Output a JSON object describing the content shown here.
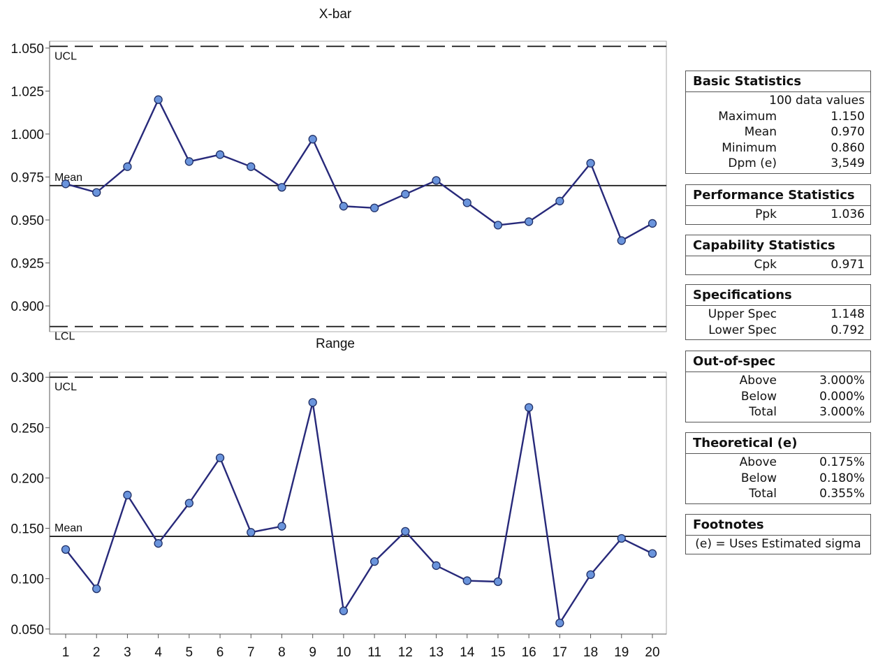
{
  "chart_data": [
    {
      "type": "line",
      "title": "X-bar",
      "x": [
        1,
        2,
        3,
        4,
        5,
        6,
        7,
        8,
        9,
        10,
        11,
        12,
        13,
        14,
        15,
        16,
        17,
        18,
        19,
        20
      ],
      "values": [
        0.971,
        0.966,
        0.981,
        1.02,
        0.984,
        0.988,
        0.981,
        0.969,
        0.997,
        0.958,
        0.957,
        0.965,
        0.973,
        0.96,
        0.947,
        0.949,
        0.961,
        0.983,
        0.938,
        0.948
      ],
      "ylim": [
        0.885,
        1.054
      ],
      "yticks": [
        "1.050",
        "1.025",
        "1.000",
        "0.975",
        "0.950",
        "0.925",
        "0.900"
      ],
      "reference_lines": [
        {
          "label": "UCL",
          "value": 1.051,
          "style": "dashed"
        },
        {
          "label": "Mean",
          "value": 0.97,
          "style": "solid"
        },
        {
          "label": "LCL",
          "value": 0.888,
          "style": "dashed"
        }
      ],
      "line_color": "#27297a",
      "marker_color": "#6a94dc"
    },
    {
      "type": "line",
      "title": "Range",
      "x": [
        1,
        2,
        3,
        4,
        5,
        6,
        7,
        8,
        9,
        10,
        11,
        12,
        13,
        14,
        15,
        16,
        17,
        18,
        19,
        20
      ],
      "values": [
        0.129,
        0.09,
        0.183,
        0.135,
        0.175,
        0.22,
        0.146,
        0.152,
        0.275,
        0.068,
        0.117,
        0.147,
        0.113,
        0.098,
        0.097,
        0.27,
        0.056,
        0.104,
        0.14,
        0.125
      ],
      "ylim": [
        0.045,
        0.305
      ],
      "yticks": [
        "0.300",
        "0.250",
        "0.200",
        "0.150",
        "0.100",
        "0.050"
      ],
      "xticks": [
        "1",
        "2",
        "3",
        "4",
        "5",
        "6",
        "7",
        "8",
        "9",
        "10",
        "11",
        "12",
        "13",
        "14",
        "15",
        "16",
        "17",
        "18",
        "19",
        "20"
      ],
      "reference_lines": [
        {
          "label": "UCL",
          "value": 0.3,
          "style": "dashed"
        },
        {
          "label": "Mean",
          "value": 0.142,
          "style": "solid"
        }
      ],
      "line_color": "#27297a",
      "marker_color": "#6a94dc"
    }
  ],
  "panels": {
    "basic": {
      "title": "Basic Statistics",
      "count": "100 data values",
      "rows": [
        {
          "label": "Maximum",
          "value": "1.150"
        },
        {
          "label": "Mean",
          "value": "0.970"
        },
        {
          "label": "Minimum",
          "value": "0.860"
        },
        {
          "label": "Dpm  (e)",
          "value": "3,549"
        }
      ]
    },
    "performance": {
      "title": "Performance Statistics",
      "rows": [
        {
          "label": "Ppk",
          "value": "1.036"
        }
      ]
    },
    "capability": {
      "title": "Capability Statistics",
      "rows": [
        {
          "label": "Cpk",
          "value": "0.971"
        }
      ]
    },
    "specs": {
      "title": "Specifications",
      "rows": [
        {
          "label": "Upper Spec",
          "value": "1.148"
        },
        {
          "label": "Lower Spec",
          "value": "0.792"
        }
      ]
    },
    "outofspec": {
      "title": "Out-of-spec",
      "rows": [
        {
          "label": "Above",
          "value": "3.000%"
        },
        {
          "label": "Below",
          "value": "0.000%"
        },
        {
          "label": "Total",
          "value": "3.000%"
        }
      ]
    },
    "theoretical": {
      "title": "Theoretical (e)",
      "rows": [
        {
          "label": "Above",
          "value": "0.175%"
        },
        {
          "label": "Below",
          "value": "0.180%"
        },
        {
          "label": "Total",
          "value": "0.355%"
        }
      ]
    },
    "footnotes": {
      "title": "Footnotes",
      "note": "(e) = Uses Estimated sigma"
    }
  }
}
